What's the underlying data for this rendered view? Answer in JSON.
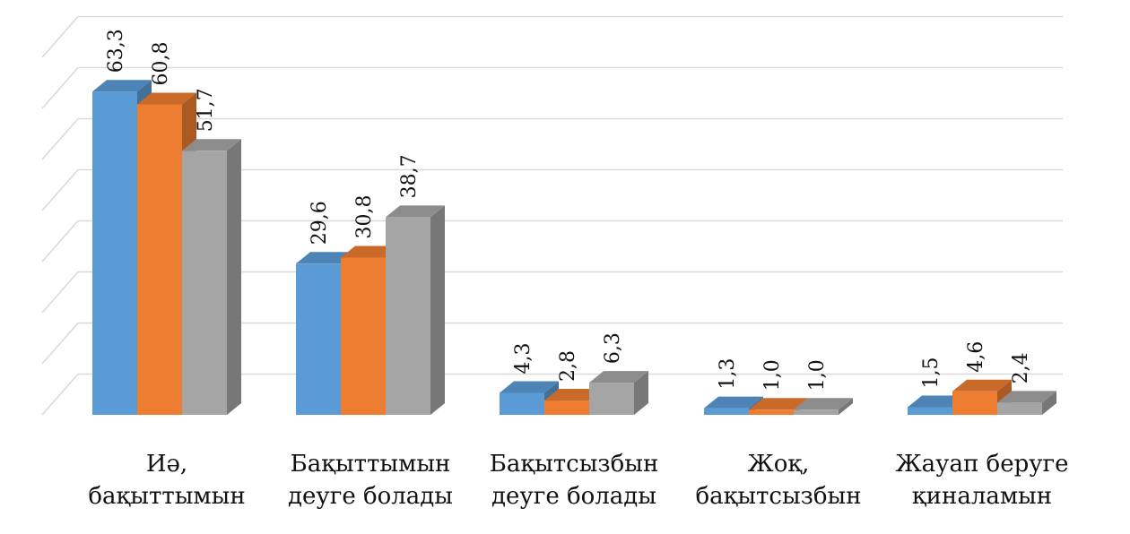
{
  "chart_data": {
    "type": "bar",
    "categories": [
      [
        "Иә,",
        "бақыттымын"
      ],
      [
        "Бақыттымын",
        "деуге болады"
      ],
      [
        "Бақытсызбын",
        "деуге болады"
      ],
      [
        "Жоқ,",
        "бақытсызбын"
      ],
      [
        "Жауап беруге",
        "қиналамын"
      ]
    ],
    "series": [
      {
        "values": [
          63.3,
          29.6,
          4.3,
          1.3,
          1.5
        ],
        "value_labels": [
          "63,3",
          "29,6",
          "4,3",
          "1,3",
          "1,5"
        ],
        "color": "#5b9bd5"
      },
      {
        "values": [
          60.8,
          30.8,
          2.8,
          1.0,
          4.6
        ],
        "value_labels": [
          "60,8",
          "30,8",
          "2,8",
          "1,0",
          "4,6"
        ],
        "color": "#ed7d31"
      },
      {
        "values": [
          51.7,
          38.7,
          6.3,
          1.0,
          2.4
        ],
        "value_labels": [
          "51,7",
          "38,7",
          "6,3",
          "1,0",
          "2,4"
        ],
        "color": "#a5a5a5"
      }
    ],
    "ylim": [
      0,
      70
    ],
    "grid": true,
    "legend": "none",
    "three_d": true
  }
}
